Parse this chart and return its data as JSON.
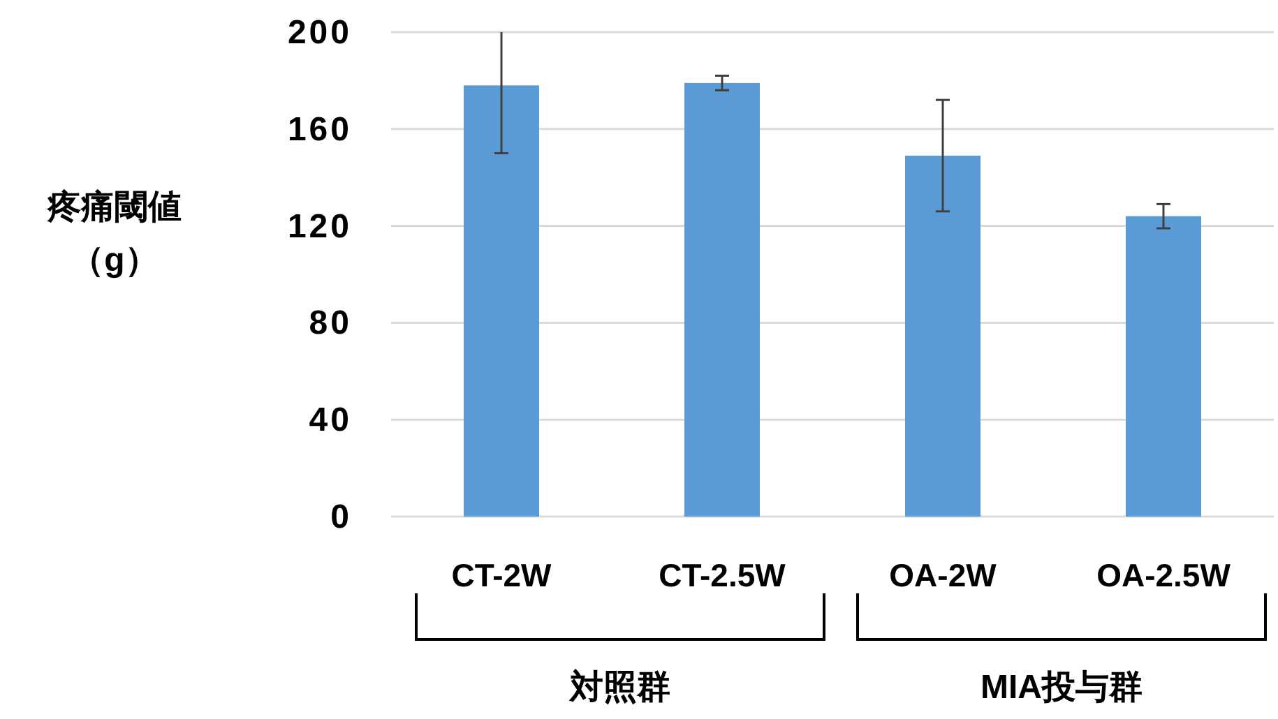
{
  "chart_data": {
    "type": "bar",
    "ylabel": "疼痛閾値（g）",
    "categories": [
      "CT-2W",
      "CT-2.5W",
      "OA-2W",
      "OA-2.5W"
    ],
    "values": [
      178,
      179,
      149,
      124
    ],
    "errors": [
      [
        150,
        200
      ],
      3,
      23,
      5
    ],
    "color": "#5b9bd5",
    "ylim": [
      0,
      200
    ],
    "yticks": [
      0,
      40,
      80,
      120,
      160,
      200
    ],
    "grid": "y",
    "annotations": [
      "対照群",
      "MIA投与群"
    ]
  }
}
